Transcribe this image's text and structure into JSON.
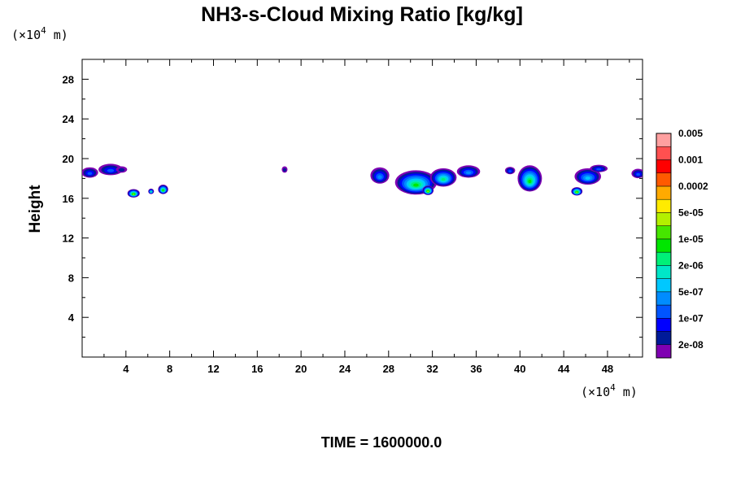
{
  "chart_data": {
    "type": "heatmap",
    "title": "NH3-s-Cloud Mixing Ratio [kg/kg]",
    "ylabel": "Height",
    "y_unit_prefix": "(×10",
    "y_unit_exp": "4",
    "y_unit_suffix": " m)",
    "x_unit_prefix": "(×10",
    "x_unit_exp": "4",
    "x_unit_suffix": " m)",
    "xlim": [
      0,
      51.2
    ],
    "ylim": [
      0,
      30
    ],
    "x_ticks": [
      "4",
      "8",
      "12",
      "16",
      "20",
      "24",
      "28",
      "32",
      "36",
      "40",
      "44",
      "48"
    ],
    "y_ticks": [
      "4",
      "8",
      "12",
      "16",
      "20",
      "24",
      "28"
    ],
    "colorbar": {
      "colors": [
        "#7f00b2",
        "#001a99",
        "#0000ff",
        "#0055ff",
        "#008cff",
        "#00c8ff",
        "#00e6c8",
        "#00f078",
        "#00e600",
        "#46e600",
        "#b4f000",
        "#ffeb00",
        "#ffaa00",
        "#ff5a00",
        "#ff0000",
        "#ff5050",
        "#ffa0a0"
      ],
      "labels": [
        "2e-08",
        "1e-07",
        "5e-07",
        "2e-06",
        "1e-05",
        "5e-05",
        "0.0002",
        "0.001",
        "0.005"
      ]
    },
    "clouds": [
      {
        "x": 0.7,
        "y": 18.6,
        "w": 1.3,
        "h": 0.8,
        "level": 3
      },
      {
        "x": 2.6,
        "y": 18.9,
        "w": 2.0,
        "h": 0.9,
        "level": 3
      },
      {
        "x": 3.6,
        "y": 18.9,
        "w": 0.8,
        "h": 0.4,
        "level": 1
      },
      {
        "x": 4.7,
        "y": 16.5,
        "w": 0.9,
        "h": 0.6,
        "level": 10
      },
      {
        "x": 6.3,
        "y": 16.7,
        "w": 0.3,
        "h": 0.3,
        "level": 7
      },
      {
        "x": 7.4,
        "y": 16.9,
        "w": 0.7,
        "h": 0.7,
        "level": 9
      },
      {
        "x": 18.5,
        "y": 18.9,
        "w": 0.3,
        "h": 0.4,
        "level": 1
      },
      {
        "x": 27.2,
        "y": 18.3,
        "w": 1.5,
        "h": 1.4,
        "level": 4
      },
      {
        "x": 30.5,
        "y": 17.6,
        "w": 3.6,
        "h": 2.2,
        "level": 8
      },
      {
        "x": 31.6,
        "y": 16.8,
        "w": 0.8,
        "h": 0.7,
        "level": 10
      },
      {
        "x": 33.0,
        "y": 18.1,
        "w": 2.2,
        "h": 1.6,
        "level": 7
      },
      {
        "x": 35.3,
        "y": 18.7,
        "w": 1.9,
        "h": 1.0,
        "level": 4
      },
      {
        "x": 39.1,
        "y": 18.8,
        "w": 0.7,
        "h": 0.5,
        "level": 3
      },
      {
        "x": 40.9,
        "y": 18.0,
        "w": 2.0,
        "h": 2.4,
        "level": 8
      },
      {
        "x": 45.2,
        "y": 16.7,
        "w": 0.8,
        "h": 0.6,
        "level": 10
      },
      {
        "x": 46.2,
        "y": 18.2,
        "w": 2.2,
        "h": 1.4,
        "level": 5
      },
      {
        "x": 47.2,
        "y": 19.0,
        "w": 1.4,
        "h": 0.5,
        "level": 3
      },
      {
        "x": 50.8,
        "y": 18.5,
        "w": 1.0,
        "h": 0.7,
        "level": 3
      }
    ],
    "time_label": "TIME = 1600000.0"
  }
}
